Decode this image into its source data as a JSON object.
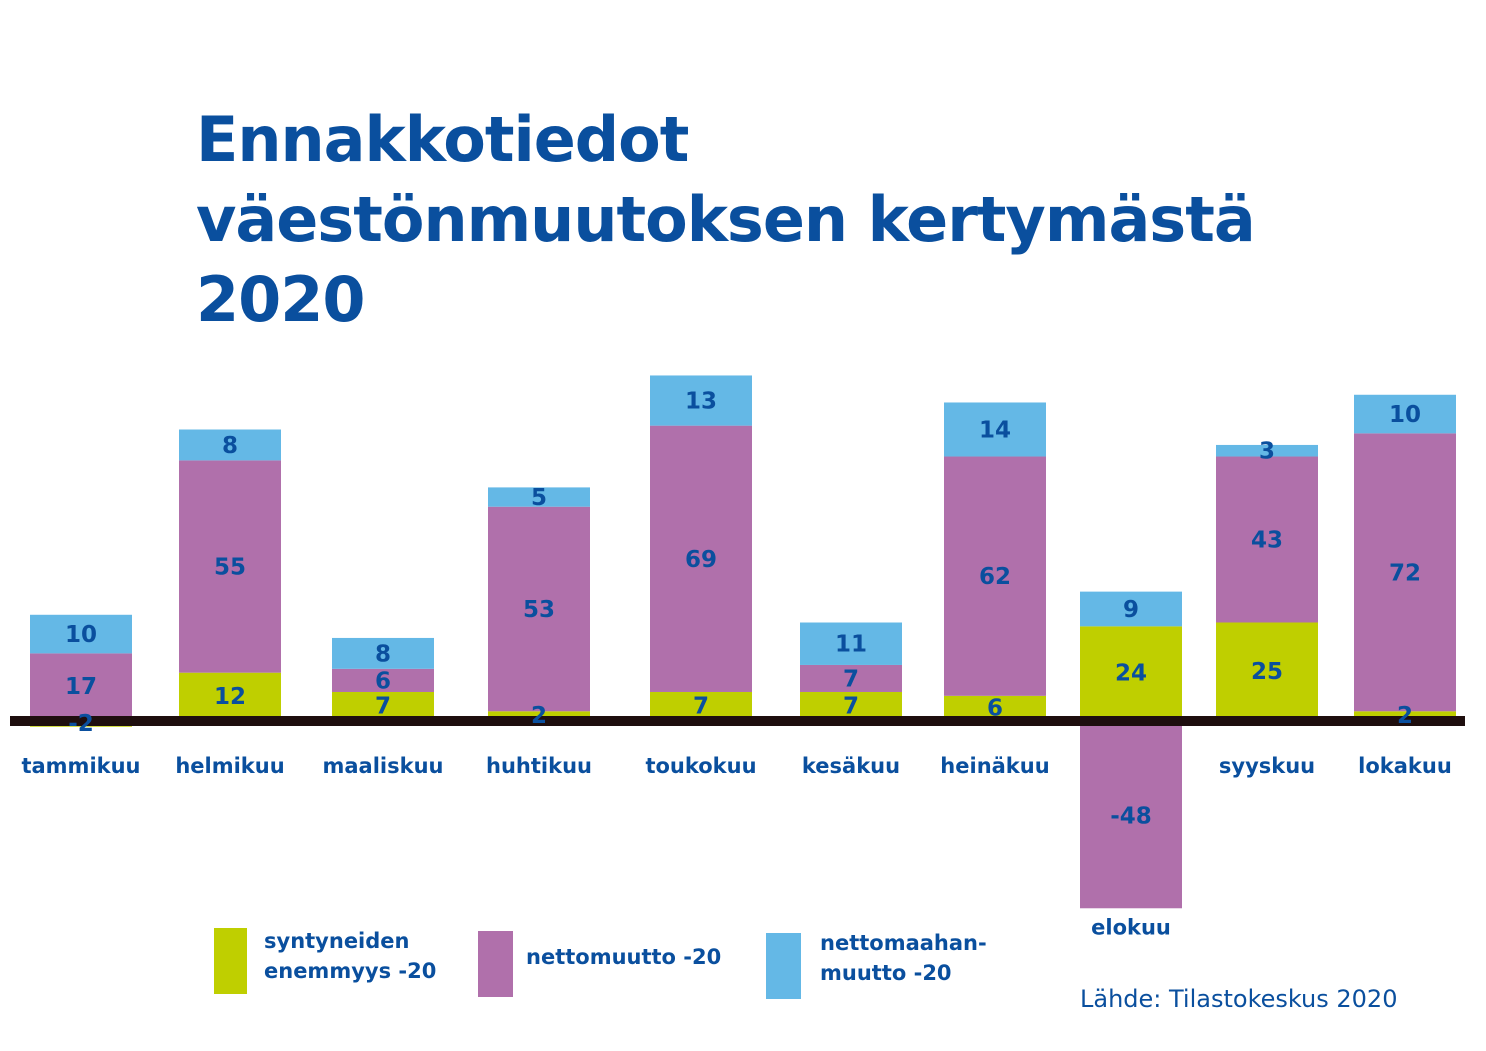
{
  "title": "Ennakkotiedot väestönmuutoksen kertymästä 2020",
  "source": "Lähde: Tilastokeskus 2020",
  "colors": {
    "syntyneiden": "#bfcf00",
    "nettomuutto": "#b070ab",
    "nettomaahanmuutto": "#64b8e6",
    "text": "#0a4f9e",
    "axis": "#1e0e0e"
  },
  "legend": [
    {
      "label": "syntyneiden\nenemmyys -20",
      "color_key": "syntyneiden"
    },
    {
      "label": "nettomuutto -20",
      "color_key": "nettomuutto"
    },
    {
      "label": "nettomaahan-\nmuutto -20",
      "color_key": "nettomaahanmuutto"
    }
  ],
  "chart_data": {
    "type": "bar",
    "stacked": true,
    "categories": [
      "tammikuu",
      "helmikuu",
      "maaliskuu",
      "huhtikuu",
      "toukokuu",
      "kesäkuu",
      "heinäkuu",
      "elokuu",
      "syyskuu",
      "lokakuu"
    ],
    "series": [
      {
        "name": "syntyneiden enemmyys -20",
        "color_key": "syntyneiden",
        "values": [
          -2,
          12,
          7,
          2,
          7,
          7,
          6,
          24,
          25,
          2
        ]
      },
      {
        "name": "nettomuutto -20",
        "color_key": "nettomuutto",
        "values": [
          17,
          55,
          6,
          53,
          69,
          7,
          62,
          -48,
          43,
          72
        ]
      },
      {
        "name": "nettomaahanmuutto -20",
        "color_key": "nettomaahanmuutto",
        "values": [
          10,
          8,
          8,
          5,
          13,
          11,
          14,
          9,
          3,
          10
        ]
      }
    ]
  }
}
